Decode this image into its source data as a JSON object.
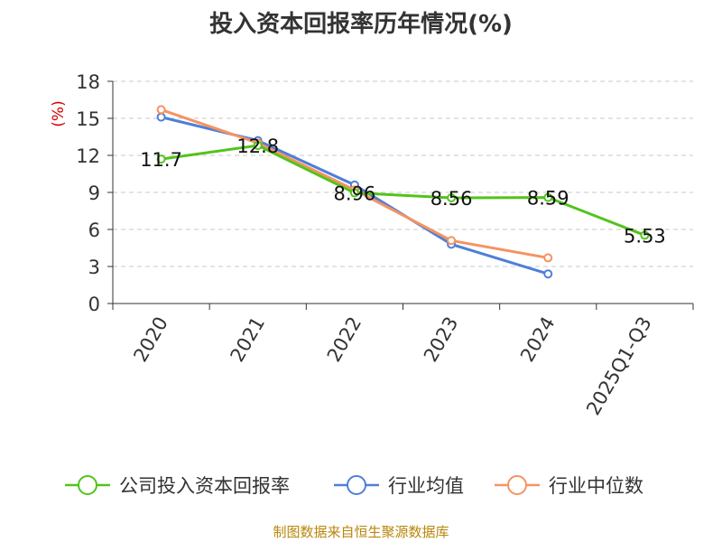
{
  "chart_data": {
    "type": "line",
    "title": "投入资本回报率历年情况(%)",
    "ylabel": "(%)",
    "xlabel": "",
    "categories": [
      "2020",
      "2021",
      "2022",
      "2023",
      "2024",
      "2025Q1-Q3"
    ],
    "ylim": [
      0,
      18
    ],
    "yticks": [
      0,
      3,
      6,
      9,
      12,
      15,
      18
    ],
    "grid": true,
    "legend_position": "bottom",
    "series": [
      {
        "name": "公司投入资本回报率",
        "color": "#52c41a",
        "values": [
          11.7,
          12.8,
          8.96,
          8.56,
          8.59,
          5.53
        ],
        "labels": [
          "11.7",
          "12.8",
          "8.96",
          "8.56",
          "8.59",
          "5.53"
        ]
      },
      {
        "name": "行业均值",
        "color": "#4e7fd8",
        "values": [
          15.1,
          13.2,
          9.6,
          4.8,
          2.4,
          null
        ]
      },
      {
        "name": "行业中位数",
        "color": "#f59362",
        "values": [
          15.7,
          13.0,
          9.2,
          5.1,
          3.7,
          null
        ]
      }
    ]
  },
  "footer": {
    "source": "制图数据来自恒生聚源数据库"
  }
}
